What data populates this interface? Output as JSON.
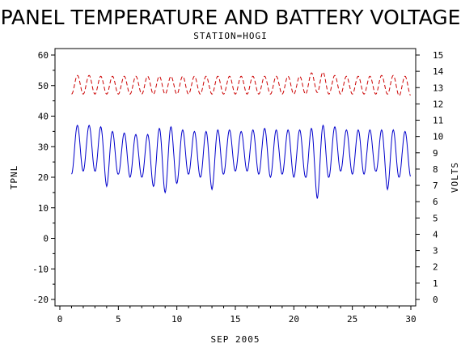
{
  "chart_data": {
    "type": "line",
    "title": "PANEL TEMPERATURE AND BATTERY VOLTAGE",
    "subtitle": "STATION=HOGI",
    "xlabel": "SEP 2005",
    "ylabel_left": "TPNL",
    "ylabel_right": "VOLTS",
    "xlim": [
      0,
      30
    ],
    "ylim_left": [
      -20,
      60
    ],
    "ylim_right": [
      0,
      15
    ],
    "x_ticks": [
      "0",
      "5",
      "10",
      "15",
      "20",
      "25",
      "30"
    ],
    "y_ticks_left": [
      "-20",
      "-10",
      "0",
      "10",
      "20",
      "30",
      "40",
      "50",
      "60"
    ],
    "y_ticks_right": [
      "0",
      "1",
      "2",
      "3",
      "4",
      "5",
      "6",
      "7",
      "8",
      "9",
      "10",
      "11",
      "12",
      "13",
      "14",
      "15"
    ],
    "grid": false,
    "series": [
      {
        "axis": "left",
        "color": "#0000cc",
        "style": "solid",
        "days": [
          {
            "min": 21,
            "max": 37
          },
          {
            "min": 22,
            "max": 37
          },
          {
            "min": 22,
            "max": 37
          },
          {
            "min": 17,
            "max": 36
          },
          {
            "min": 21,
            "max": 34
          },
          {
            "min": 20,
            "max": 35
          },
          {
            "min": 20,
            "max": 33
          },
          {
            "min": 17,
            "max": 35
          },
          {
            "min": 15,
            "max": 37
          },
          {
            "min": 18,
            "max": 36
          },
          {
            "min": 21,
            "max": 35
          },
          {
            "min": 20,
            "max": 35
          },
          {
            "min": 16,
            "max": 35
          },
          {
            "min": 21,
            "max": 36
          },
          {
            "min": 22,
            "max": 35
          },
          {
            "min": 22,
            "max": 35
          },
          {
            "min": 21,
            "max": 36
          },
          {
            "min": 20,
            "max": 36
          },
          {
            "min": 21,
            "max": 35
          },
          {
            "min": 20,
            "max": 36
          },
          {
            "min": 20,
            "max": 35
          },
          {
            "min": 13,
            "max": 37
          },
          {
            "min": 20,
            "max": 37
          },
          {
            "min": 22,
            "max": 36
          },
          {
            "min": 21,
            "max": 35
          },
          {
            "min": 21,
            "max": 36
          },
          {
            "min": 22,
            "max": 35
          },
          {
            "min": 16,
            "max": 36
          },
          {
            "min": 20,
            "max": 35
          }
        ]
      },
      {
        "axis": "right",
        "color": "#cc0000",
        "style": "dashed",
        "days": [
          {
            "min": 12.6,
            "max": 13.7
          },
          {
            "min": 12.6,
            "max": 13.8
          },
          {
            "min": 12.6,
            "max": 13.7
          },
          {
            "min": 12.6,
            "max": 13.7
          },
          {
            "min": 12.6,
            "max": 13.7
          },
          {
            "min": 12.6,
            "max": 13.7
          },
          {
            "min": 12.6,
            "max": 13.7
          },
          {
            "min": 12.6,
            "max": 13.7
          },
          {
            "min": 12.6,
            "max": 13.7
          },
          {
            "min": 12.6,
            "max": 13.7
          },
          {
            "min": 12.6,
            "max": 13.7
          },
          {
            "min": 12.6,
            "max": 13.7
          },
          {
            "min": 12.6,
            "max": 13.7
          },
          {
            "min": 12.6,
            "max": 13.7
          },
          {
            "min": 12.6,
            "max": 13.7
          },
          {
            "min": 12.6,
            "max": 13.7
          },
          {
            "min": 12.6,
            "max": 13.7
          },
          {
            "min": 12.6,
            "max": 13.7
          },
          {
            "min": 12.6,
            "max": 13.7
          },
          {
            "min": 12.6,
            "max": 13.7
          },
          {
            "min": 12.6,
            "max": 13.7
          },
          {
            "min": 12.7,
            "max": 14.1
          },
          {
            "min": 12.6,
            "max": 13.8
          },
          {
            "min": 12.6,
            "max": 13.7
          },
          {
            "min": 12.6,
            "max": 13.7
          },
          {
            "min": 12.6,
            "max": 13.7
          },
          {
            "min": 12.6,
            "max": 13.7
          },
          {
            "min": 12.6,
            "max": 13.8
          },
          {
            "min": 12.5,
            "max": 13.7
          }
        ]
      }
    ]
  }
}
